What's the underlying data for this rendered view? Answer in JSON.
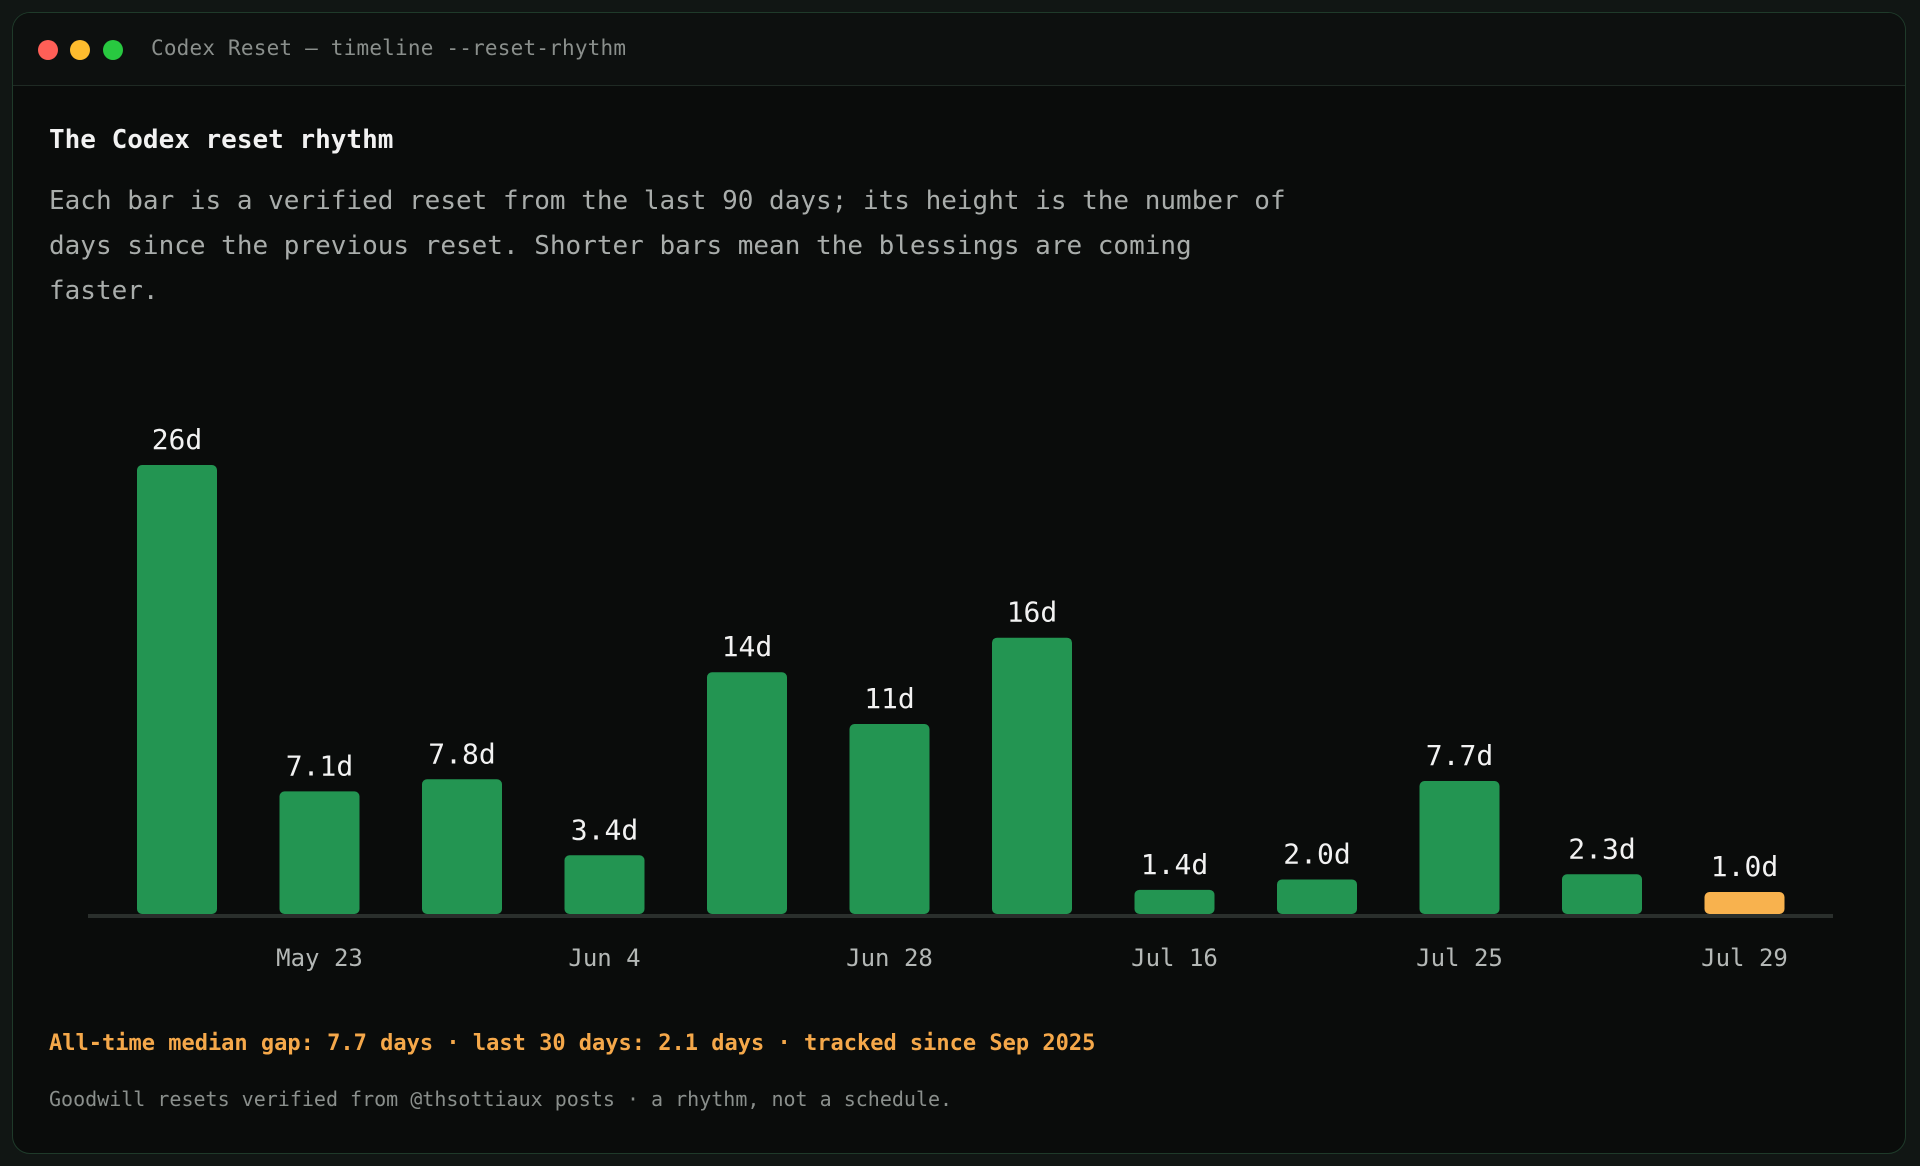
{
  "window": {
    "title": "Codex Reset — timeline --reset-rhythm"
  },
  "chart_data": {
    "type": "bar",
    "title": "The Codex reset rhythm",
    "subtitle": "Each bar is a verified reset from the last 90 days; its height is the number of days since the previous reset. Shorter bars mean the blessings are coming faster.",
    "xlabel": "",
    "ylabel": "",
    "ylim": [
      0,
      26
    ],
    "grid": false,
    "values": [
      26,
      7.1,
      7.8,
      3.4,
      14,
      11,
      16,
      1.4,
      2.0,
      7.7,
      2.3,
      1.0
    ],
    "data_labels": [
      "26d",
      "7.1d",
      "7.8d",
      "3.4d",
      "14d",
      "11d",
      "16d",
      "1.4d",
      "2.0d",
      "7.7d",
      "2.3d",
      "1.0d"
    ],
    "tick_labels": [
      {
        "bar_index": 1,
        "label": "May 23"
      },
      {
        "bar_index": 3,
        "label": "Jun 4"
      },
      {
        "bar_index": 5,
        "label": "Jun 28"
      },
      {
        "bar_index": 7,
        "label": "Jul 16"
      },
      {
        "bar_index": 9,
        "label": "Jul 25"
      },
      {
        "bar_index": 11,
        "label": "Jul 29"
      }
    ],
    "highlight_index": 11,
    "colors": {
      "bar": "#239552",
      "highlight": "#f8b24e",
      "baseline": "#2a2f2c",
      "label": "#f2f2f2",
      "tick": "#b4b8b6"
    }
  },
  "stats": {
    "text": "All-time median gap: 7.7 days · last 30 days: 2.1 days · tracked since Sep 2025"
  },
  "footnote": {
    "text": "Goodwill resets verified from @thsottiaux posts · a rhythm, not a schedule."
  }
}
